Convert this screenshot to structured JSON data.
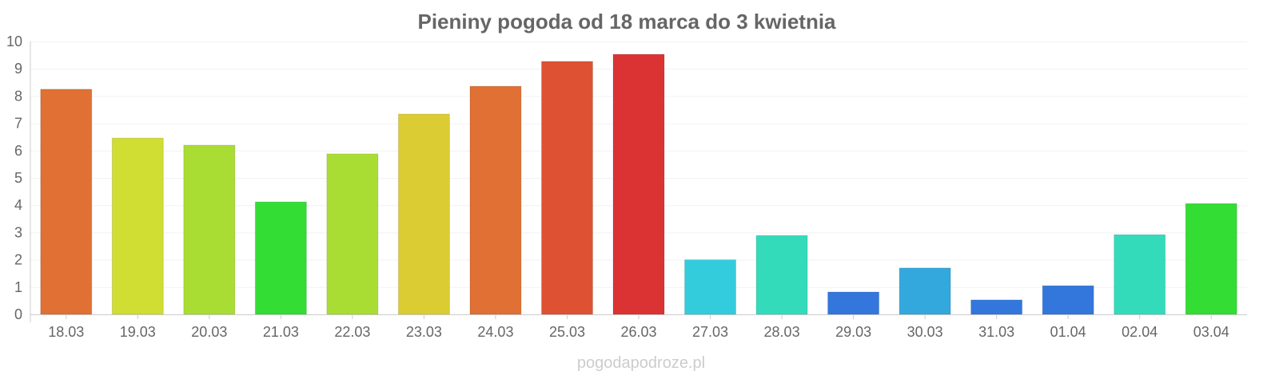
{
  "chart_data": {
    "type": "bar",
    "title": "Pieniny pogoda od 18 marca do 3 kwietnia",
    "xlabel": "",
    "ylabel": "",
    "ylim": [
      0,
      10
    ],
    "yticks": [
      "0",
      "1",
      "2",
      "3",
      "4",
      "5",
      "6",
      "7",
      "8",
      "9",
      "10"
    ],
    "grid": true,
    "categories": [
      "18.03",
      "19.03",
      "20.03",
      "21.03",
      "22.03",
      "23.03",
      "24.03",
      "25.03",
      "26.03",
      "27.03",
      "28.03",
      "29.03",
      "30.03",
      "31.03",
      "01.04",
      "02.04",
      "03.04"
    ],
    "values": [
      8.25,
      6.46,
      6.2,
      4.12,
      5.88,
      7.34,
      8.36,
      9.27,
      9.53,
      2.0,
      2.89,
      0.82,
      1.7,
      0.53,
      1.05,
      2.92,
      4.06
    ],
    "colors": [
      "#e07033",
      "#d0de33",
      "#aadd33",
      "#33dd33",
      "#aadd33",
      "#dccc33",
      "#e07033",
      "#de5233",
      "#db3333",
      "#33ccdd",
      "#33dbbb",
      "#3377dd",
      "#33a8dd",
      "#3377dd",
      "#3377dd",
      "#33dbbb",
      "#33dd33"
    ]
  },
  "credit": "pogodapodroze.pl"
}
